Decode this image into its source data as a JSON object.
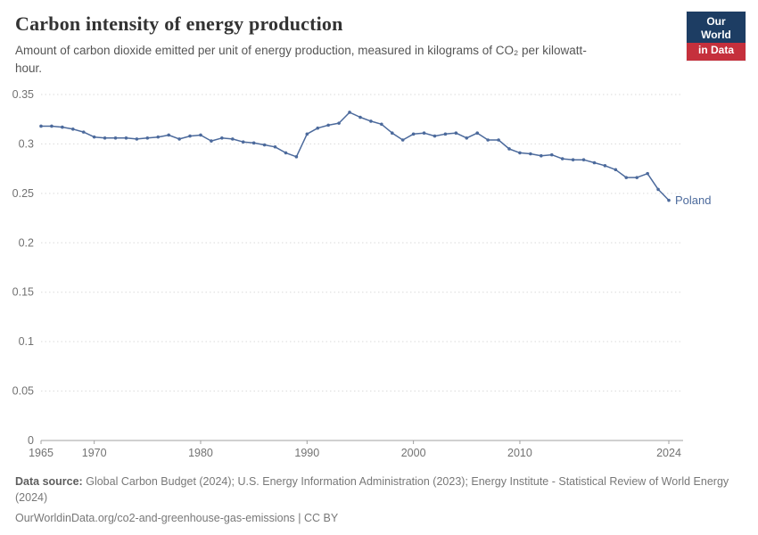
{
  "header": {
    "title": "Carbon intensity of energy production",
    "subtitle": "Amount of carbon dioxide emitted per unit of energy production, measured in kilograms of CO₂ per kilowatt-hour."
  },
  "logo": {
    "line1": "Our World",
    "line2": "in Data"
  },
  "chart_data": {
    "type": "line",
    "title": "Carbon intensity of energy production",
    "xlabel": "",
    "ylabel": "kilograms of CO₂ per kilowatt-hour",
    "xlim": [
      1965,
      2024
    ],
    "ylim": [
      0,
      0.35
    ],
    "x_ticks": [
      1965,
      1970,
      1980,
      1990,
      2000,
      2010,
      2024
    ],
    "y_ticks": [
      0,
      0.05,
      0.1,
      0.15,
      0.2,
      0.25,
      0.3,
      0.35
    ],
    "y_tick_labels": [
      "0",
      "0.05",
      "0.1",
      "0.15",
      "0.2",
      "0.25",
      "0.3",
      "0.35"
    ],
    "grid": "horizontal-dotted",
    "legend_position": "end-of-line-label",
    "x": [
      1965,
      1966,
      1967,
      1968,
      1969,
      1970,
      1971,
      1972,
      1973,
      1974,
      1975,
      1976,
      1977,
      1978,
      1979,
      1980,
      1981,
      1982,
      1983,
      1984,
      1985,
      1986,
      1987,
      1988,
      1989,
      1990,
      1991,
      1992,
      1993,
      1994,
      1995,
      1996,
      1997,
      1998,
      1999,
      2000,
      2001,
      2002,
      2003,
      2004,
      2005,
      2006,
      2007,
      2008,
      2009,
      2010,
      2011,
      2012,
      2013,
      2014,
      2015,
      2016,
      2017,
      2018,
      2019,
      2020,
      2021,
      2022,
      2023,
      2024
    ],
    "series": [
      {
        "name": "Poland",
        "color": "#4c6a9c",
        "values": [
          0.318,
          0.318,
          0.317,
          0.315,
          0.312,
          0.307,
          0.306,
          0.306,
          0.306,
          0.305,
          0.306,
          0.307,
          0.309,
          0.305,
          0.308,
          0.309,
          0.303,
          0.306,
          0.305,
          0.302,
          0.301,
          0.299,
          0.297,
          0.291,
          0.287,
          0.31,
          0.316,
          0.319,
          0.321,
          0.332,
          0.327,
          0.323,
          0.32,
          0.311,
          0.304,
          0.31,
          0.311,
          0.308,
          0.31,
          0.311,
          0.306,
          0.311,
          0.304,
          0.304,
          0.295,
          0.291,
          0.29,
          0.288,
          0.289,
          0.285,
          0.284,
          0.284,
          0.281,
          0.278,
          0.274,
          0.266,
          0.266,
          0.27,
          0.254,
          0.243
        ]
      }
    ]
  },
  "footer": {
    "source_label": "Data source:",
    "source_text": "Global Carbon Budget (2024); U.S. Energy Information Administration (2023); Energy Institute - Statistical Review of World Energy (2024)",
    "link_text": "OurWorldinData.org/co2-and-greenhouse-gas-emissions | CC BY"
  },
  "colors": {
    "series": "#4c6a9c",
    "axis_text": "#727272",
    "grid": "#dadada",
    "axis_line": "#a0a0a0",
    "logo_navy": "#1d3d63",
    "logo_red": "#c5303c"
  }
}
